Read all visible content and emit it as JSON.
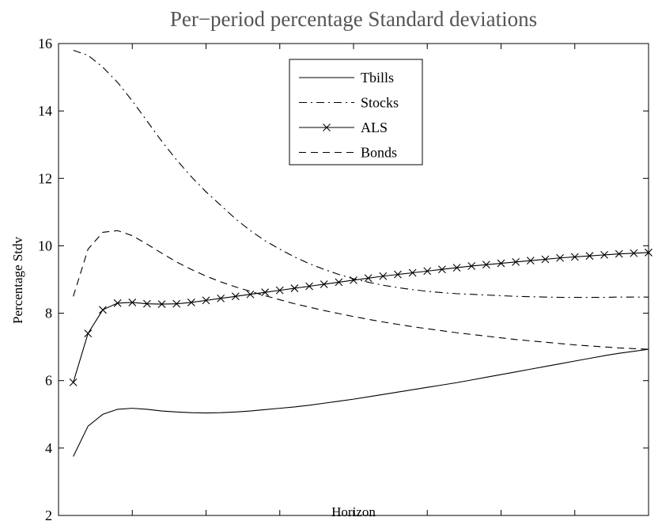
{
  "chart_data": {
    "type": "line",
    "title": "Per−period percentage Standard deviations",
    "xlabel": "Horizon",
    "ylabel": "Percentage Stdv",
    "xlim": [
      0,
      40
    ],
    "ylim": [
      2,
      16
    ],
    "xticks": [
      0,
      5,
      10,
      15,
      20,
      25,
      30,
      35,
      40
    ],
    "yticks": [
      2,
      4,
      6,
      8,
      10,
      12,
      14,
      16
    ],
    "grid": false,
    "legend_position": "top-center",
    "x": [
      1,
      2,
      3,
      4,
      5,
      6,
      7,
      8,
      9,
      10,
      11,
      12,
      13,
      14,
      15,
      16,
      17,
      18,
      19,
      20,
      21,
      22,
      23,
      24,
      25,
      26,
      27,
      28,
      29,
      30,
      31,
      32,
      33,
      34,
      35,
      36,
      37,
      38,
      39,
      40
    ],
    "series": [
      {
        "name": "Tbills",
        "style": "solid",
        "color": "#000000",
        "values": [
          3.75,
          4.65,
          5.0,
          5.15,
          5.18,
          5.15,
          5.1,
          5.07,
          5.05,
          5.04,
          5.05,
          5.07,
          5.1,
          5.14,
          5.18,
          5.22,
          5.27,
          5.33,
          5.39,
          5.45,
          5.52,
          5.59,
          5.66,
          5.73,
          5.8,
          5.87,
          5.94,
          6.02,
          6.1,
          6.18,
          6.26,
          6.34,
          6.42,
          6.5,
          6.58,
          6.66,
          6.74,
          6.81,
          6.87,
          6.93
        ]
      },
      {
        "name": "Stocks",
        "style": "dashdot",
        "color": "#000000",
        "values": [
          15.8,
          15.65,
          15.3,
          14.85,
          14.3,
          13.7,
          13.1,
          12.55,
          12.05,
          11.6,
          11.2,
          10.8,
          10.45,
          10.15,
          9.9,
          9.67,
          9.47,
          9.3,
          9.15,
          9.02,
          8.92,
          8.83,
          8.76,
          8.7,
          8.65,
          8.61,
          8.58,
          8.56,
          8.54,
          8.52,
          8.5,
          8.49,
          8.48,
          8.47,
          8.47,
          8.47,
          8.47,
          8.48,
          8.48,
          8.48
        ]
      },
      {
        "name": "ALS",
        "style": "solid-x",
        "color": "#000000",
        "values": [
          5.95,
          7.4,
          8.1,
          8.3,
          8.32,
          8.28,
          8.27,
          8.28,
          8.32,
          8.38,
          8.44,
          8.5,
          8.56,
          8.62,
          8.68,
          8.74,
          8.8,
          8.86,
          8.92,
          8.98,
          9.04,
          9.1,
          9.15,
          9.2,
          9.25,
          9.3,
          9.35,
          9.4,
          9.44,
          9.48,
          9.52,
          9.56,
          9.6,
          9.64,
          9.67,
          9.7,
          9.73,
          9.76,
          9.78,
          9.8
        ]
      },
      {
        "name": "Bonds",
        "style": "dashed",
        "color": "#000000",
        "values": [
          8.5,
          9.9,
          10.4,
          10.45,
          10.3,
          10.05,
          9.78,
          9.52,
          9.3,
          9.1,
          8.93,
          8.78,
          8.65,
          8.52,
          8.4,
          8.28,
          8.18,
          8.08,
          7.99,
          7.9,
          7.82,
          7.74,
          7.67,
          7.6,
          7.54,
          7.48,
          7.42,
          7.37,
          7.32,
          7.27,
          7.22,
          7.18,
          7.14,
          7.1,
          7.06,
          7.03,
          7.0,
          6.97,
          6.95,
          6.93
        ]
      }
    ]
  }
}
